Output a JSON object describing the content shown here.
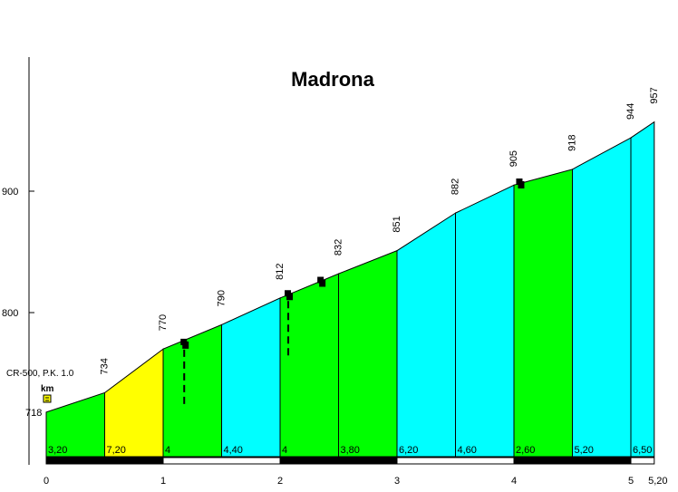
{
  "chart_data": {
    "type": "area",
    "title": "Madrona",
    "start_note": "CR-500, P.K. 1.0",
    "unit_label": "km",
    "colors": {
      "green": "#00ff00",
      "yellow": "#ffff00",
      "cyan": "#00ffff",
      "bar_dark": "#000000",
      "bar_light": "#ffffff"
    },
    "segments": [
      {
        "x0": 0.0,
        "x1": 0.5,
        "y0": 718,
        "y1": 734,
        "gradient": "3,20",
        "color": "green"
      },
      {
        "x0": 0.5,
        "x1": 1.0,
        "y0": 734,
        "y1": 770,
        "gradient": "7,20",
        "color": "yellow"
      },
      {
        "x0": 1.0,
        "x1": 1.5,
        "y0": 770,
        "y1": 790,
        "gradient": "4",
        "color": "green"
      },
      {
        "x0": 1.5,
        "x1": 2.0,
        "y0": 790,
        "y1": 812,
        "gradient": "4,40",
        "color": "cyan"
      },
      {
        "x0": 2.0,
        "x1": 2.5,
        "y0": 812,
        "y1": 832,
        "gradient": "4",
        "color": "green"
      },
      {
        "x0": 2.5,
        "x1": 3.0,
        "y0": 832,
        "y1": 851,
        "gradient": "3,80",
        "color": "green"
      },
      {
        "x0": 3.0,
        "x1": 3.5,
        "y0": 851,
        "y1": 882,
        "gradient": "6,20",
        "color": "cyan"
      },
      {
        "x0": 3.5,
        "x1": 4.0,
        "y0": 882,
        "y1": 905,
        "gradient": "4,60",
        "color": "cyan"
      },
      {
        "x0": 4.0,
        "x1": 4.5,
        "y0": 905,
        "y1": 918,
        "gradient": "2,60",
        "color": "green"
      },
      {
        "x0": 4.5,
        "x1": 5.0,
        "y0": 918,
        "y1": 944,
        "gradient": "5,20",
        "color": "cyan"
      },
      {
        "x0": 5.0,
        "x1": 5.2,
        "y0": 944,
        "y1": 957,
        "gradient": "6,50",
        "color": "cyan"
      }
    ],
    "altitude_labels": [
      {
        "x": 0.0,
        "value": "718"
      },
      {
        "x": 0.5,
        "value": "734"
      },
      {
        "x": 1.0,
        "value": "770"
      },
      {
        "x": 1.5,
        "value": "790"
      },
      {
        "x": 2.0,
        "value": "812"
      },
      {
        "x": 2.5,
        "value": "832"
      },
      {
        "x": 3.0,
        "value": "851"
      },
      {
        "x": 3.5,
        "value": "882"
      },
      {
        "x": 4.0,
        "value": "905"
      },
      {
        "x": 4.5,
        "value": "918"
      },
      {
        "x": 5.0,
        "value": "944"
      },
      {
        "x": 5.2,
        "value": "957"
      }
    ],
    "y_ticks": [
      {
        "value": 800,
        "label": "800"
      },
      {
        "value": 900,
        "label": "900"
      }
    ],
    "x_ticks": [
      {
        "value": 0,
        "label": "0"
      },
      {
        "value": 1,
        "label": "1"
      },
      {
        "value": 2,
        "label": "2"
      },
      {
        "value": 3,
        "label": "3"
      },
      {
        "value": 4,
        "label": "4"
      },
      {
        "value": 5,
        "label": "5"
      },
      {
        "value": 5.2,
        "label": "5,20"
      }
    ],
    "xlim": [
      0,
      5.2
    ],
    "ylim": [
      650,
      1000
    ],
    "markers": [
      {
        "x": 1.18,
        "y": 774,
        "dashed_line": true
      },
      {
        "x": 2.07,
        "y": 814,
        "dashed_line": true
      },
      {
        "x": 2.35,
        "y": 825,
        "dashed_line": false
      },
      {
        "x": 4.05,
        "y": 906,
        "dashed_line": false
      }
    ]
  }
}
